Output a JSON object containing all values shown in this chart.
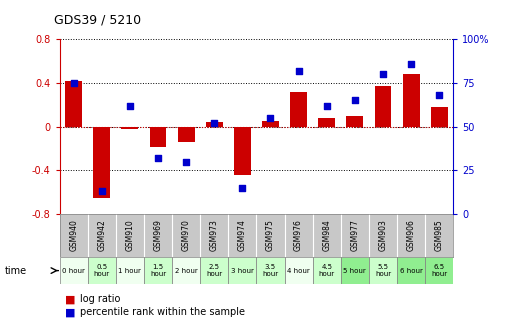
{
  "title": "GDS39 / 5210",
  "gsm_labels": [
    "GSM940",
    "GSM942",
    "GSM910",
    "GSM969",
    "GSM970",
    "GSM973",
    "GSM974",
    "GSM975",
    "GSM976",
    "GSM984",
    "GSM977",
    "GSM903",
    "GSM906",
    "GSM985"
  ],
  "time_labels": [
    "0 hour",
    "0.5\nhour",
    "1 hour",
    "1.5\nhour",
    "2 hour",
    "2.5\nhour",
    "3 hour",
    "3.5\nhour",
    "4 hour",
    "4.5\nhour",
    "5 hour",
    "5.5\nhour",
    "6 hour",
    "6.5\nhour"
  ],
  "log_ratio": [
    0.42,
    -0.65,
    -0.02,
    -0.19,
    -0.14,
    0.04,
    -0.44,
    0.05,
    0.32,
    0.08,
    0.1,
    0.37,
    0.48,
    0.18
  ],
  "percentile": [
    75,
    13,
    62,
    32,
    30,
    52,
    15,
    55,
    82,
    62,
    65,
    80,
    86,
    68
  ],
  "bar_color": "#cc0000",
  "dot_color": "#0000cc",
  "bg_color": "#ffffff",
  "ylim_left": [
    -0.8,
    0.8
  ],
  "ylim_right": [
    0,
    100
  ],
  "yticks_left": [
    -0.8,
    -0.4,
    0.0,
    0.4,
    0.8
  ],
  "yticks_right": [
    0,
    25,
    50,
    75,
    100
  ],
  "time_cell_colors": [
    "#f0fff0",
    "#ccffcc",
    "#f0fff0",
    "#ccffcc",
    "#f0fff0",
    "#ccffcc",
    "#ccffcc",
    "#ccffcc",
    "#f0fff0",
    "#ccffcc",
    "#90ee90",
    "#ccffcc",
    "#90ee90",
    "#90ee90"
  ],
  "gsm_cell_color": "#c8c8c8"
}
